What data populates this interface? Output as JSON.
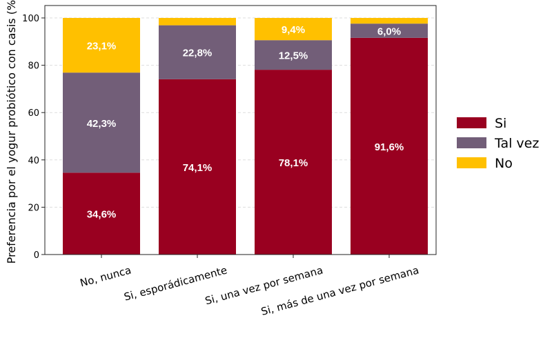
{
  "chart_data": {
    "type": "bar",
    "stacked": true,
    "title": "",
    "xlabel": "",
    "ylabel": "Preferencia por el yogur probiótico con casis (%)",
    "ylim": [
      0,
      100
    ],
    "yticks": [
      "0",
      "20",
      "40",
      "60",
      "80",
      "100"
    ],
    "grid": true,
    "legend_position": "right",
    "categories": [
      "No, nunca",
      "Si, esporádicamente",
      "Si, una vez por semana",
      "Si, más de una vez por semana"
    ],
    "series": [
      {
        "name": "Si",
        "color": "#990020",
        "values": [
          34.6,
          74.1,
          78.1,
          91.6
        ],
        "labels": [
          "34,6%",
          "74,1%",
          "78,1%",
          "91,6%"
        ]
      },
      {
        "name": "Tal vez",
        "color": "#725e78",
        "values": [
          42.3,
          22.8,
          12.5,
          6.0
        ],
        "labels": [
          "42,3%",
          "22,8%",
          "12,5%",
          "6,0%"
        ]
      },
      {
        "name": "No",
        "color": "#ffc000",
        "values": [
          23.1,
          3.1,
          9.4,
          2.4
        ],
        "labels": [
          "23,1%",
          "",
          "9,4%",
          ""
        ]
      }
    ]
  }
}
